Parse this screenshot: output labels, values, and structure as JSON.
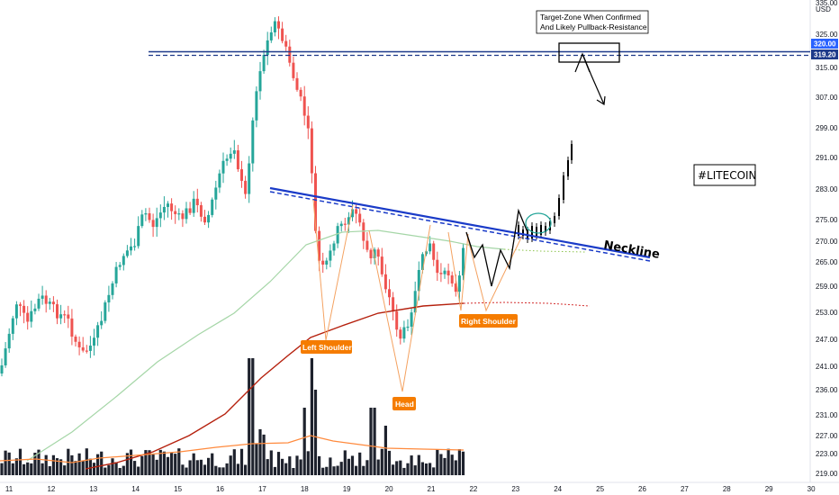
{
  "chart_data": {
    "type": "candlestick",
    "currency_label": "USD",
    "price_axis_ticks": [
      "335.00",
      "325.00",
      "315.00",
      "307.00",
      "299.00",
      "291.00",
      "283.00",
      "275.00",
      "270.00",
      "265.00",
      "259.00",
      "253.00",
      "247.00",
      "241.00",
      "236.00",
      "231.00",
      "227.00",
      "223.00",
      "219.00"
    ],
    "price_badges": [
      {
        "label": "320.00",
        "color": "#2962ff"
      },
      {
        "label": "319.20",
        "color": "#1e3a8a"
      }
    ],
    "date_axis_ticks": [
      "11",
      "12",
      "13",
      "14",
      "15",
      "16",
      "17",
      "18",
      "19",
      "20",
      "21",
      "22",
      "23",
      "24",
      "25",
      "26",
      "27",
      "28",
      "29",
      "30"
    ],
    "ylim": [
      219,
      335
    ],
    "annotations": {
      "title_tag": "#LITECOIN",
      "neckline": "Neckline",
      "left_shoulder": "Left Shoulder",
      "head": "Head",
      "right_shoulder": "Right Shoulder",
      "target_note_line1": "Target-Zone When Confirmed",
      "target_note_line2": "And Likely Pullback-Resistance"
    },
    "levels": {
      "resistance_1": 320.0,
      "resistance_2": 319.2
    },
    "colors": {
      "up": "#26a69a",
      "down": "#ef5350",
      "volume": "#1e222d",
      "ma_long": "#b5200d",
      "ma_mid": "#a5d6a7",
      "neckline": "#1a3bc8",
      "projection": "#000000",
      "label_bg": "#f57c00"
    }
  }
}
